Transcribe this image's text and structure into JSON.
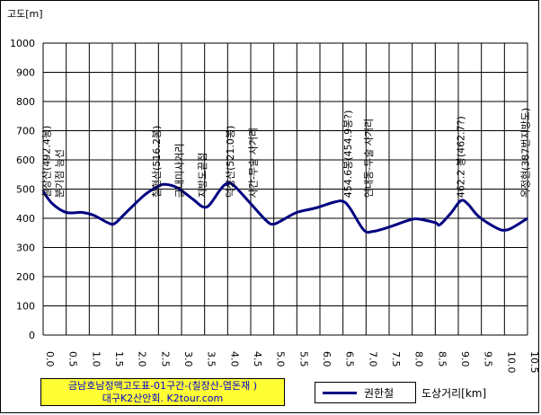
{
  "chart_data": {
    "type": "line",
    "ylabel": "고도[m]",
    "xlabel": "도상거리[km]",
    "xlim": [
      0,
      10.5
    ],
    "ylim": [
      0,
      1000
    ],
    "x_ticks": [
      "0.0",
      "0.5",
      "1.0",
      "1.5",
      "2.0",
      "2.5",
      "3.0",
      "3.5",
      "4.0",
      "4.5",
      "5.0",
      "5.5",
      "6.0",
      "6.5",
      "7.0",
      "7.5",
      "8.0",
      "8.5",
      "9.0",
      "9.5",
      "10.0",
      "10.5"
    ],
    "y_ticks": [
      "0",
      "100",
      "200",
      "300",
      "400",
      "500",
      "600",
      "700",
      "800",
      "900",
      "1000"
    ],
    "grid": true,
    "series": [
      {
        "name": "권한철",
        "color": "#000080",
        "x": [
          0,
          0.2,
          0.5,
          0.85,
          1.1,
          1.4,
          1.55,
          1.8,
          2.2,
          2.5,
          2.65,
          2.9,
          3.25,
          3.45,
          3.6,
          3.85,
          4.0,
          4.15,
          4.5,
          4.85,
          5.0,
          5.2,
          5.5,
          5.9,
          6.3,
          6.5,
          6.65,
          6.95,
          7.15,
          7.5,
          7.9,
          8.1,
          8.5,
          8.6,
          8.85,
          9.05,
          9.2,
          9.45,
          9.85,
          10.05,
          10.25,
          10.5
        ],
        "y": [
          492,
          450,
          420,
          420,
          410,
          385,
          382,
          420,
          480,
          510,
          516,
          505,
          465,
          440,
          445,
          500,
          520,
          510,
          450,
          390,
          380,
          395,
          420,
          435,
          455,
          458,
          435,
          360,
          355,
          370,
          392,
          398,
          385,
          378,
          420,
          460,
          450,
          405,
          365,
          360,
          375,
          400
        ]
      }
    ],
    "annotations": [
      {
        "x": 0.07,
        "text": "칠장산(492.4봉)"
      },
      {
        "x": 0.35,
        "text": "분기점 능선"
      },
      {
        "x": 2.45,
        "text": "칠현산(516.2봉)"
      },
      {
        "x": 2.95,
        "text": "금내미사거리"
      },
      {
        "x": 3.45,
        "text": "지방도끝점"
      },
      {
        "x": 4.05,
        "text": "덕성산(521.0봉)"
      },
      {
        "x": 4.55,
        "text": "사간-무술 사거리"
      },
      {
        "x": 6.6,
        "text": "454.6봉(454.9봉?)"
      },
      {
        "x": 7.05,
        "text": "연내동-무술 사거리"
      },
      {
        "x": 9.05,
        "text": "462.2 봉(462.7?)"
      },
      {
        "x": 10.45,
        "text": "옥정현(387번지방도)"
      }
    ]
  },
  "info_box": {
    "line1": "금남호남정맥고도표-01구간-(칠장산-엽돈재 )",
    "line2": "대구K2산안회. K2tour.com"
  },
  "legend": {
    "label": "권한철"
  }
}
